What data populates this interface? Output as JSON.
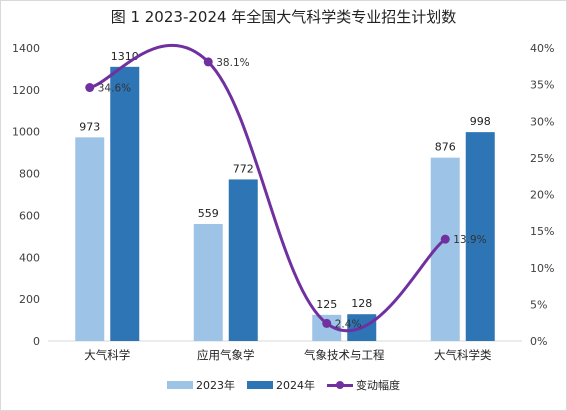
{
  "chart_data": {
    "type": "bar",
    "title": "图 1 2023-2024 年全国大气科学类专业招生计划数",
    "categories": [
      "大气科学",
      "应用气象学",
      "气象技术与工程",
      "大气科学类"
    ],
    "series": [
      {
        "name": "2023年",
        "kind": "bar",
        "axis": "left",
        "color": "#9dc3e6",
        "values": [
          973,
          559,
          125,
          876
        ]
      },
      {
        "name": "2024年",
        "kind": "bar",
        "axis": "left",
        "color": "#2e75b6",
        "values": [
          1310,
          772,
          128,
          998
        ]
      },
      {
        "name": "变动幅度",
        "kind": "line",
        "axis": "right",
        "color": "#7030a0",
        "values": [
          34.6,
          38.1,
          2.4,
          13.9
        ],
        "labels": [
          "34.6%",
          "38.1%",
          "2.4%",
          "13.9%"
        ]
      }
    ],
    "y_left": {
      "min": 0,
      "max": 1400,
      "step": 200,
      "ticks": [
        "0",
        "200",
        "400",
        "600",
        "800",
        "1000",
        "1200",
        "1400"
      ]
    },
    "y_right": {
      "min": 0,
      "max": 40,
      "step": 5,
      "ticks": [
        "0%",
        "5%",
        "10%",
        "15%",
        "20%",
        "25%",
        "30%",
        "35%",
        "40%"
      ]
    },
    "grid": false,
    "legend": "bottom"
  }
}
